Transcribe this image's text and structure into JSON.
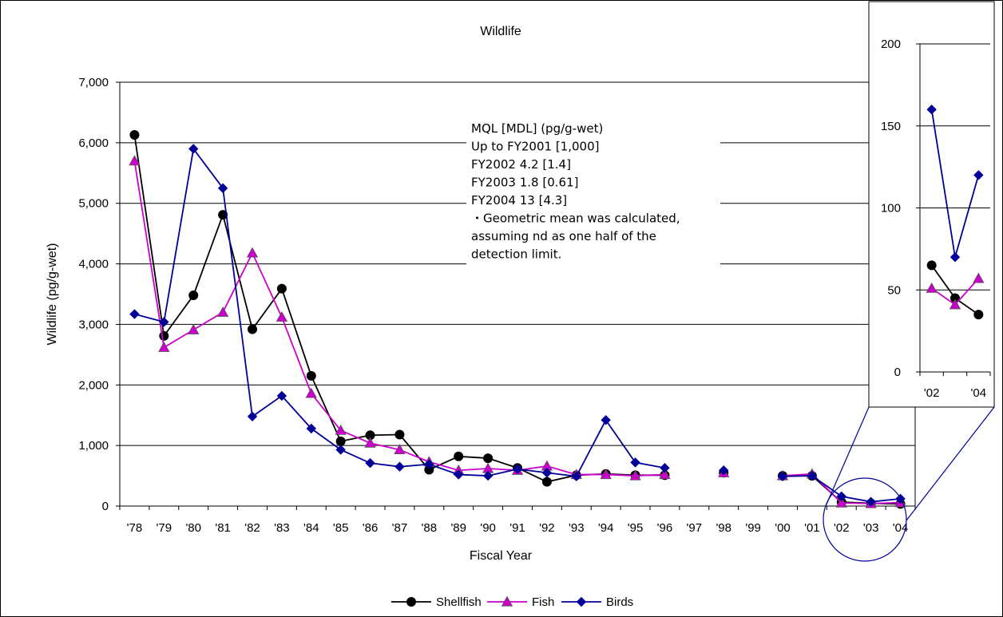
{
  "chart_data": [
    {
      "type": "line",
      "title": "Wildlife",
      "xlabel": "Fiscal Year",
      "ylabel": "Wildlife (pg/g-wet)",
      "ylim": [
        0,
        7000
      ],
      "yticks": [
        0,
        1000,
        2000,
        3000,
        4000,
        5000,
        6000,
        7000
      ],
      "ytick_labels": [
        "0",
        "1,000",
        "2,000",
        "3,000",
        "4,000",
        "5,000",
        "6,000",
        "7,000"
      ],
      "grid": true,
      "legend_position": "bottom",
      "categories": [
        "'78",
        "'79",
        "'80",
        "'81",
        "'82",
        "'83",
        "'84",
        "'85",
        "'86",
        "'87",
        "'88",
        "'89",
        "'90",
        "'91",
        "'92",
        "'93",
        "'94",
        "'95",
        "'96",
        "'97",
        "'98",
        "'99",
        "'00",
        "'01",
        "'02",
        "'03",
        "'04"
      ],
      "series": [
        {
          "name": "Shellfish",
          "color": "#000000",
          "marker": "circle",
          "values": [
            6130,
            2810,
            3480,
            4810,
            2920,
            3590,
            2150,
            1070,
            1170,
            1180,
            600,
            820,
            790,
            630,
            400,
            510,
            530,
            510,
            510,
            null,
            550,
            null,
            500,
            500,
            65,
            45,
            35
          ]
        },
        {
          "name": "Fish",
          "color": "#cc00cc",
          "marker": "triangle",
          "values": [
            5700,
            2620,
            2910,
            3200,
            4180,
            3120,
            1860,
            1250,
            1040,
            930,
            730,
            590,
            620,
            590,
            660,
            520,
            520,
            500,
            520,
            null,
            550,
            null,
            500,
            530,
            51,
            41,
            57
          ]
        },
        {
          "name": "Birds",
          "color": "#000099",
          "marker": "diamond",
          "values": [
            3170,
            3040,
            5900,
            5250,
            1480,
            1820,
            1280,
            930,
            710,
            650,
            690,
            520,
            500,
            610,
            550,
            490,
            1420,
            720,
            630,
            null,
            590,
            null,
            490,
            500,
            160,
            70,
            120
          ]
        }
      ],
      "annotation": [
        "MQL [MDL] (pg/g-wet)",
        "Up to FY2001  [1,000]",
        "  FY2002   4.2 [1.4]",
        "  FY2003   1.8 [0.61]",
        "  FY2004   13 [4.3]",
        "・Geometric mean was calculated,",
        "assuming nd as one half of the",
        "detection limit."
      ]
    },
    {
      "type": "line",
      "title": "",
      "ylim": [
        0,
        200
      ],
      "yticks": [
        0,
        50,
        100,
        150,
        200
      ],
      "ytick_labels": [
        "0",
        "50",
        "100",
        "150",
        "200"
      ],
      "xtick_labels": [
        "'02",
        "'04"
      ],
      "grid": true,
      "categories": [
        "'02",
        "'03",
        "'04"
      ],
      "series": [
        {
          "name": "Shellfish",
          "color": "#000000",
          "marker": "circle",
          "values": [
            65,
            45,
            35
          ]
        },
        {
          "name": "Fish",
          "color": "#cc00cc",
          "marker": "triangle",
          "values": [
            51,
            41,
            57
          ]
        },
        {
          "name": "Birds",
          "color": "#000099",
          "marker": "diamond",
          "values": [
            160,
            70,
            120
          ]
        }
      ]
    }
  ]
}
